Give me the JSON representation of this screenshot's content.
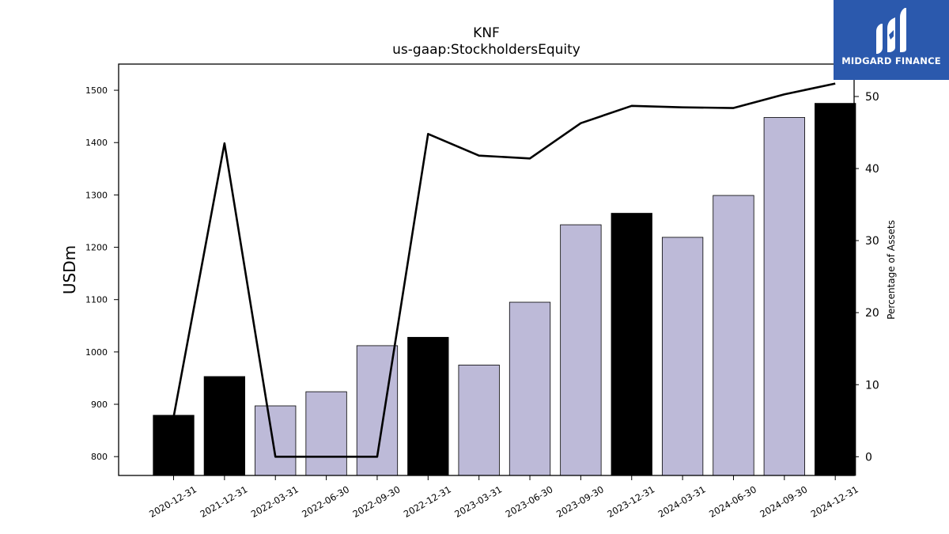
{
  "chart_data": {
    "type": "bar",
    "title": "KNF",
    "subtitle": "us-gaap:StockholdersEquity",
    "ylabel": "USDm",
    "y2label": "Percentage of Assets",
    "categories": [
      "2020-12-31",
      "2021-12-31",
      "2022-03-31",
      "2022-06-30",
      "2022-09-30",
      "2022-12-31",
      "2023-03-31",
      "2023-06-30",
      "2023-09-30",
      "2023-12-31",
      "2024-03-31",
      "2024-06-30",
      "2024-09-30",
      "2024-12-31"
    ],
    "series": [
      {
        "type": "bar",
        "axis": "left",
        "values": [
          879,
          953,
          897,
          924,
          1012,
          1028,
          975,
          1095,
          1243,
          1265,
          1219,
          1299,
          1448,
          1475
        ],
        "colors": [
          "#000000",
          "#000000",
          "#bdbad8",
          "#bdbad8",
          "#bdbad8",
          "#000000",
          "#bdbad8",
          "#bdbad8",
          "#bdbad8",
          "#000000",
          "#bdbad8",
          "#bdbad8",
          "#bdbad8",
          "#000000"
        ]
      },
      {
        "type": "line",
        "axis": "right",
        "color": "#000000",
        "values": [
          5.5,
          43.5,
          0,
          0,
          0,
          44.8,
          41.8,
          41.4,
          46.3,
          48.7,
          48.5,
          48.4,
          50.3,
          51.8
        ]
      }
    ],
    "ylim": [
      764,
      1550
    ],
    "yticks": [
      800,
      900,
      1000,
      1100,
      1200,
      1300,
      1400,
      1500
    ],
    "y2lim": [
      -2.6,
      54.5
    ],
    "y2ticks": [
      0,
      10,
      20,
      30,
      40,
      50
    ],
    "grid": false
  },
  "logo": {
    "text": "MIDGARD FINANCE"
  }
}
